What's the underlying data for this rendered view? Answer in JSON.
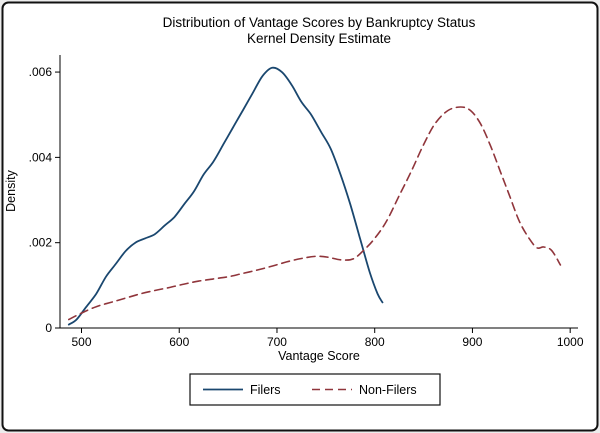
{
  "figure": {
    "background": "#ffffff",
    "border_color": "#111111"
  },
  "chart_data": {
    "type": "line",
    "title": "Distribution of Vantage Scores by Bankruptcy Status",
    "subtitle": "Kernel Density Estimate",
    "xlabel": "Vantage Score",
    "ylabel": "Density",
    "xlim": [
      478,
      1008
    ],
    "ylim": [
      0,
      0.0064
    ],
    "grid": false,
    "legend_position": "bottom",
    "x_ticks": [
      {
        "value": 500,
        "label": "500"
      },
      {
        "value": 600,
        "label": "600"
      },
      {
        "value": 700,
        "label": "700"
      },
      {
        "value": 800,
        "label": "800"
      },
      {
        "value": 900,
        "label": "900"
      },
      {
        "value": 1000,
        "label": "1000"
      }
    ],
    "y_ticks": [
      {
        "value": 0,
        "label": "0"
      },
      {
        "value": 0.002,
        "label": ".002"
      },
      {
        "value": 0.004,
        "label": ".004"
      },
      {
        "value": 0.006,
        "label": ".006"
      }
    ],
    "series": [
      {
        "name": "Filers",
        "color": "#1a476f",
        "dash": "solid",
        "points": [
          [
            487,
            8e-05
          ],
          [
            495,
            0.0002
          ],
          [
            505,
            0.0005
          ],
          [
            515,
            0.0008
          ],
          [
            525,
            0.0012
          ],
          [
            535,
            0.0015
          ],
          [
            545,
            0.0018
          ],
          [
            555,
            0.002
          ],
          [
            565,
            0.0021
          ],
          [
            575,
            0.0022
          ],
          [
            585,
            0.0024
          ],
          [
            595,
            0.0026
          ],
          [
            605,
            0.0029
          ],
          [
            615,
            0.0032
          ],
          [
            625,
            0.0036
          ],
          [
            635,
            0.0039
          ],
          [
            645,
            0.0043
          ],
          [
            655,
            0.0047
          ],
          [
            665,
            0.0051
          ],
          [
            675,
            0.0055
          ],
          [
            685,
            0.0059
          ],
          [
            695,
            0.0061
          ],
          [
            705,
            0.006
          ],
          [
            715,
            0.0057
          ],
          [
            725,
            0.0053
          ],
          [
            735,
            0.005
          ],
          [
            745,
            0.0046
          ],
          [
            755,
            0.0042
          ],
          [
            765,
            0.0036
          ],
          [
            775,
            0.0029
          ],
          [
            785,
            0.0021
          ],
          [
            795,
            0.0013
          ],
          [
            803,
            0.0008
          ],
          [
            808,
            0.0006
          ]
        ]
      },
      {
        "name": "Non-Filers",
        "color": "#90353b",
        "dash": "dashed",
        "points": [
          [
            487,
            0.0002
          ],
          [
            500,
            0.00035
          ],
          [
            515,
            0.0005
          ],
          [
            530,
            0.0006
          ],
          [
            545,
            0.0007
          ],
          [
            560,
            0.0008
          ],
          [
            575,
            0.00088
          ],
          [
            590,
            0.00095
          ],
          [
            605,
            0.00103
          ],
          [
            620,
            0.0011
          ],
          [
            635,
            0.00115
          ],
          [
            650,
            0.0012
          ],
          [
            665,
            0.00128
          ],
          [
            680,
            0.00136
          ],
          [
            695,
            0.00145
          ],
          [
            710,
            0.00155
          ],
          [
            725,
            0.00163
          ],
          [
            740,
            0.00168
          ],
          [
            752,
            0.00166
          ],
          [
            765,
            0.0016
          ],
          [
            778,
            0.00162
          ],
          [
            790,
            0.00185
          ],
          [
            800,
            0.0021
          ],
          [
            812,
            0.0025
          ],
          [
            825,
            0.0031
          ],
          [
            838,
            0.0037
          ],
          [
            850,
            0.0043
          ],
          [
            862,
            0.0048
          ],
          [
            875,
            0.0051
          ],
          [
            888,
            0.00518
          ],
          [
            898,
            0.0051
          ],
          [
            908,
            0.0048
          ],
          [
            918,
            0.0043
          ],
          [
            928,
            0.0037
          ],
          [
            938,
            0.0031
          ],
          [
            948,
            0.0025
          ],
          [
            958,
            0.0021
          ],
          [
            966,
            0.00188
          ],
          [
            973,
            0.0019
          ],
          [
            981,
            0.00182
          ],
          [
            990,
            0.00148
          ]
        ]
      }
    ]
  }
}
